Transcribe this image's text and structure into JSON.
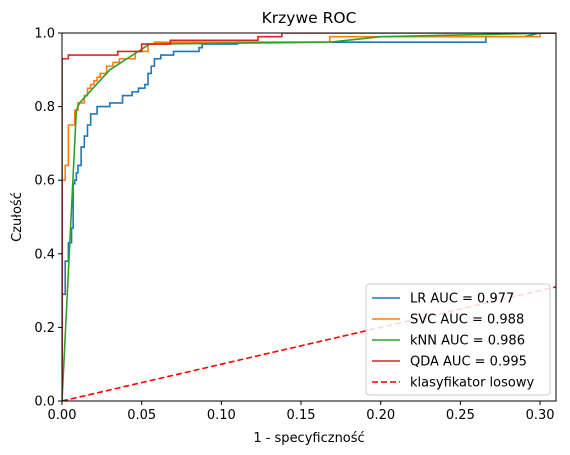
{
  "chart_data": {
    "type": "line",
    "title": "Krzywe ROC",
    "xlabel": "1 - specyficzność",
    "ylabel": "Czułość",
    "xlim": [
      0,
      0.31
    ],
    "ylim": [
      0,
      1.0
    ],
    "xticks": [
      0.0,
      0.05,
      0.1,
      0.15,
      0.2,
      0.25,
      0.3
    ],
    "xtick_labels": [
      "0.00",
      "0.05",
      "0.10",
      "0.15",
      "0.20",
      "0.25",
      "0.30"
    ],
    "yticks": [
      0.0,
      0.2,
      0.4,
      0.6,
      0.8,
      1.0
    ],
    "ytick_labels": [
      "0.0",
      "0.2",
      "0.4",
      "0.6",
      "0.8",
      "1.0"
    ],
    "grid": false,
    "legend_position": "lower-right",
    "series": [
      {
        "name": "LR  AUC = 0.977",
        "color": "#1f77b4",
        "style": "solid",
        "x": [
          0,
          0,
          0.002,
          0.002,
          0.004,
          0.004,
          0.006,
          0.006,
          0.007,
          0.007,
          0.008,
          0.008,
          0.009,
          0.009,
          0.01,
          0.01,
          0.012,
          0.012,
          0.014,
          0.014,
          0.016,
          0.016,
          0.018,
          0.018,
          0.022,
          0.022,
          0.03,
          0.03,
          0.038,
          0.038,
          0.044,
          0.044,
          0.048,
          0.048,
          0.052,
          0.052,
          0.054,
          0.054,
          0.056,
          0.056,
          0.058,
          0.058,
          0.062,
          0.062,
          0.07,
          0.07,
          0.086,
          0.086,
          0.088,
          0.088,
          0.11,
          0.11,
          0.125,
          0.125,
          0.266,
          0.266,
          0.27,
          0.29,
          0.3,
          0.31
        ],
        "y": [
          0,
          0.29,
          0.29,
          0.38,
          0.38,
          0.43,
          0.43,
          0.47,
          0.47,
          0.59,
          0.59,
          0.6,
          0.6,
          0.62,
          0.62,
          0.64,
          0.64,
          0.69,
          0.69,
          0.72,
          0.72,
          0.75,
          0.75,
          0.78,
          0.78,
          0.8,
          0.8,
          0.81,
          0.81,
          0.83,
          0.83,
          0.84,
          0.84,
          0.85,
          0.85,
          0.86,
          0.86,
          0.89,
          0.89,
          0.91,
          0.91,
          0.93,
          0.93,
          0.94,
          0.94,
          0.95,
          0.95,
          0.96,
          0.96,
          0.97,
          0.97,
          0.975,
          0.975,
          0.975,
          0.975,
          0.99,
          0.99,
          0.99,
          1.0,
          1.0
        ]
      },
      {
        "name": "SVC AUC = 0.988",
        "color": "#ff7f0e",
        "style": "solid",
        "x": [
          0,
          0,
          0.002,
          0.002,
          0.004,
          0.004,
          0.008,
          0.008,
          0.01,
          0.01,
          0.014,
          0.014,
          0.016,
          0.016,
          0.018,
          0.018,
          0.02,
          0.02,
          0.022,
          0.022,
          0.024,
          0.024,
          0.028,
          0.028,
          0.032,
          0.032,
          0.036,
          0.036,
          0.046,
          0.046,
          0.054,
          0.054,
          0.058,
          0.058,
          0.168,
          0.168,
          0.3,
          0.3,
          0.31
        ],
        "y": [
          0,
          0.6,
          0.6,
          0.64,
          0.64,
          0.75,
          0.75,
          0.79,
          0.79,
          0.81,
          0.81,
          0.83,
          0.83,
          0.85,
          0.85,
          0.86,
          0.86,
          0.87,
          0.87,
          0.88,
          0.88,
          0.89,
          0.89,
          0.91,
          0.91,
          0.92,
          0.92,
          0.93,
          0.93,
          0.95,
          0.95,
          0.97,
          0.97,
          0.975,
          0.975,
          0.99,
          0.99,
          1.0,
          1.0
        ]
      },
      {
        "name": "kNN AUC = 0.986",
        "color": "#2ca02c",
        "style": "solid",
        "x": [
          0,
          0.009,
          0.011,
          0.03,
          0.055,
          0.168,
          0.2,
          0.31
        ],
        "y": [
          0,
          0.79,
          0.81,
          0.9,
          0.97,
          0.975,
          0.99,
          1.0
        ]
      },
      {
        "name": "QDA AUC = 0.995",
        "color": "#d62728",
        "style": "solid",
        "x": [
          0,
          0,
          0.004,
          0.004,
          0.035,
          0.035,
          0.05,
          0.05,
          0.068,
          0.068,
          0.123,
          0.123,
          0.138,
          0.138,
          0.31
        ],
        "y": [
          0,
          0.93,
          0.93,
          0.94,
          0.94,
          0.95,
          0.95,
          0.97,
          0.97,
          0.98,
          0.98,
          0.99,
          0.99,
          1.0,
          1.0
        ]
      },
      {
        "name": "klasyfikator losowy",
        "color": "#ff0000",
        "style": "dashed",
        "x": [
          0,
          0.31
        ],
        "y": [
          0,
          0.31
        ]
      }
    ]
  }
}
